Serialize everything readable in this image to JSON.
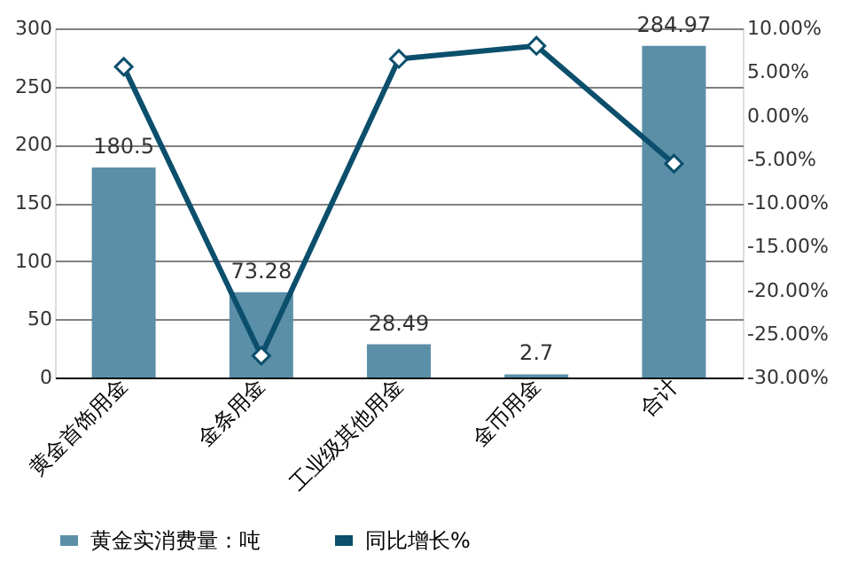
{
  "chart_data": {
    "type": "bar",
    "categories": [
      "黄金首饰用金",
      "金条用金",
      "工业级其他用金",
      "金币用金",
      "合计"
    ],
    "series": [
      {
        "name": "黄金实消费量：吨",
        "color": "#5b8fa8",
        "values": [
          180.5,
          73.28,
          28.49,
          2.7,
          284.97
        ],
        "value_labels": [
          "180.5",
          "73.28",
          "28.49",
          "2.7",
          "284.97"
        ]
      },
      {
        "name": "同比增长%",
        "type": "line",
        "axis": "y2",
        "color": "#0b4f6c",
        "marker": "diamond",
        "values": [
          5.6,
          -27.5,
          6.5,
          8.0,
          -5.5
        ]
      }
    ],
    "ylim": [
      0,
      300
    ],
    "yticks": [
      0,
      50,
      100,
      150,
      200,
      250,
      300
    ],
    "y2lim": [
      -30,
      10
    ],
    "y2ticks": [
      {
        "value": -30,
        "label": "-30.00%"
      },
      {
        "value": -25,
        "label": "-25.00%"
      },
      {
        "value": -20,
        "label": "-20.00%"
      },
      {
        "value": -15,
        "label": "-15.00%"
      },
      {
        "value": -10,
        "label": "-10.00%"
      },
      {
        "value": -5,
        "label": "-5.00%"
      },
      {
        "value": 0,
        "label": "0.00%"
      },
      {
        "value": 5,
        "label": "5.00%"
      },
      {
        "value": 10,
        "label": "10.00%"
      }
    ],
    "grid": "y",
    "legend": "bottom"
  }
}
